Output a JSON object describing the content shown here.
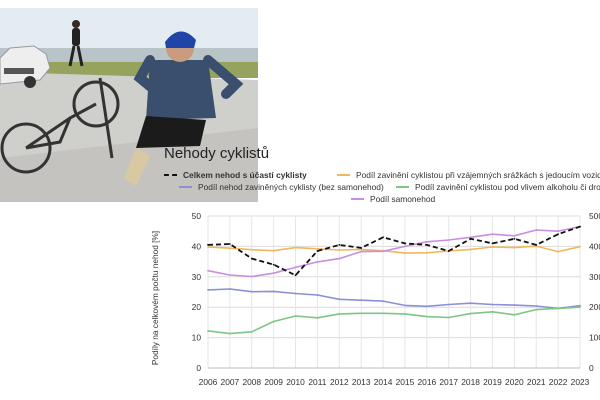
{
  "photo": {
    "description_icon": "cyclist-accident-photo",
    "colors": {
      "sky": "#dfe9f0",
      "road": "#c9c9c7",
      "grass": "#8c9a5a"
    }
  },
  "chart_data": {
    "type": "line",
    "title": "Nehody cyklistů",
    "ylabel": "Podíly na celkovém počtu nehod  [%]",
    "xlabel": "",
    "x": [
      2006,
      2007,
      2008,
      2009,
      2010,
      2011,
      2012,
      2013,
      2014,
      2015,
      2016,
      2017,
      2018,
      2019,
      2020,
      2021,
      2022,
      2023
    ],
    "x_ticks": [
      "2006",
      "2007",
      "2008",
      "2009",
      "2010",
      "2011",
      "2012",
      "2013",
      "2014",
      "2015",
      "2016",
      "2017",
      "2018",
      "2019",
      "2020",
      "2021",
      "2022",
      "2023"
    ],
    "ylim": [
      0,
      50
    ],
    "y_ticks": [
      "0",
      "10",
      "20",
      "30",
      "40",
      "50"
    ],
    "y2lim": [
      0,
      5000
    ],
    "y2_ticks": [
      "0",
      "1000",
      "2000",
      "3000",
      "4000",
      "5000"
    ],
    "grid": true,
    "legend_position": "top",
    "series": [
      {
        "name": "Celkem nehod s účastí cyklisty",
        "axis": "right",
        "dashed": true,
        "bold": true,
        "color": "#111111",
        "values": [
          4050,
          4080,
          3600,
          3400,
          3050,
          3850,
          4050,
          3950,
          4300,
          4100,
          4050,
          3850,
          4250,
          4100,
          4250,
          4050,
          4400,
          4650
        ]
      },
      {
        "name": "Podíl zavinění cyklistou při vzájemných srážkách s jedoucím vozidlem",
        "axis": "left",
        "color": "#f2b65c",
        "values": [
          39.8,
          39.4,
          38.9,
          38.6,
          39.6,
          39.2,
          38.8,
          39.0,
          38.6,
          37.8,
          37.9,
          38.5,
          39.0,
          39.8,
          39.6,
          40.1,
          38.3,
          39.9
        ]
      },
      {
        "name": "Podíl nehod zaviněných cyklisty (bez samonehod)",
        "axis": "left",
        "color": "#8c8fd6",
        "values": [
          25.7,
          26.0,
          25.1,
          25.2,
          24.5,
          24.0,
          22.6,
          22.3,
          22.0,
          20.6,
          20.3,
          20.9,
          21.3,
          20.9,
          20.7,
          20.4,
          19.6,
          20.5
        ]
      },
      {
        "name": "Podíl zavinění cyklistou pod vlivem alkoholu či drog",
        "axis": "left",
        "color": "#7dc685",
        "values": [
          12.2,
          11.3,
          11.9,
          15.3,
          17.1,
          16.5,
          17.8,
          18.0,
          18.0,
          17.8,
          16.9,
          16.6,
          17.9,
          18.5,
          17.5,
          19.2,
          19.6,
          20.0
        ]
      },
      {
        "name": "Podíl samonehod",
        "axis": "left",
        "color": "#c88ee0",
        "values": [
          32.0,
          30.6,
          30.1,
          31.2,
          33.1,
          34.9,
          36.0,
          38.3,
          38.4,
          40.0,
          41.5,
          42.1,
          43.0,
          44.0,
          43.5,
          45.4,
          45.0,
          46.5
        ]
      }
    ]
  }
}
